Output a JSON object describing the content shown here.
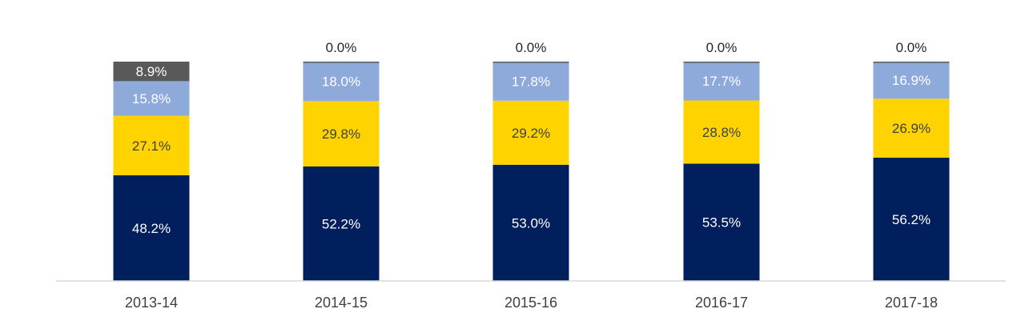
{
  "chart_data": {
    "type": "bar",
    "stacked": true,
    "normalized": true,
    "categories": [
      "2013-14",
      "2014-15",
      "2015-16",
      "2016-17",
      "2017-18"
    ],
    "series": [
      {
        "values": [
          48.2,
          52.2,
          53.0,
          53.5,
          56.2
        ],
        "labels": [
          "48.2%",
          "52.2%",
          "53.0%",
          "53.5%",
          "56.2%"
        ],
        "color": "#001f5c",
        "label_color": "#ffffff"
      },
      {
        "values": [
          27.1,
          29.8,
          29.2,
          28.8,
          26.9
        ],
        "labels": [
          "27.1%",
          "29.8%",
          "29.2%",
          "28.8%",
          "26.9%"
        ],
        "color": "#ffd300",
        "label_color": "#404040"
      },
      {
        "values": [
          15.8,
          18.0,
          17.8,
          17.7,
          16.9
        ],
        "labels": [
          "15.8%",
          "18.0%",
          "17.8%",
          "17.7%",
          "16.9%"
        ],
        "color": "#8eaadb",
        "label_color": "#ffffff"
      },
      {
        "values": [
          8.9,
          0.0,
          0.0,
          0.0,
          0.0
        ],
        "labels": [
          "8.9%",
          "0.0%",
          "0.0%",
          "0.0%",
          "0.0%"
        ],
        "color": "#595959",
        "label_color": "#ffffff",
        "outside_label_color": "#262626"
      }
    ],
    "ylim": [
      0,
      100
    ],
    "grid": false,
    "legend": "none"
  }
}
